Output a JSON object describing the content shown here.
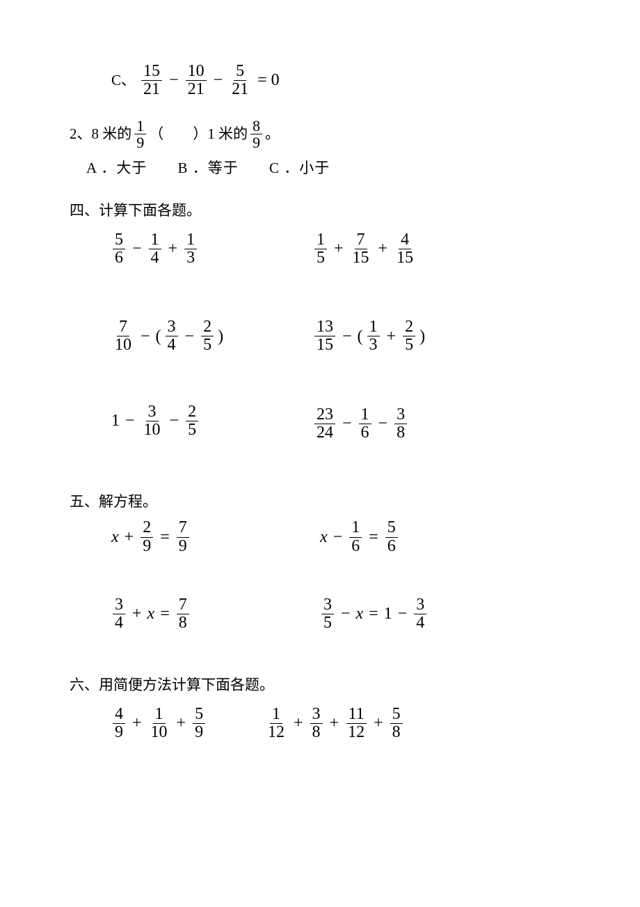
{
  "option_c_item": {
    "label": "C、",
    "f1": {
      "n": "15",
      "d": "21"
    },
    "op1": "−",
    "f2": {
      "n": "10",
      "d": "21"
    },
    "op2": "−",
    "f3": {
      "n": "5",
      "d": "21"
    },
    "eq": "= 0"
  },
  "q2": {
    "prefix": "2、8 米的",
    "frac1": {
      "n": "1",
      "d": "9"
    },
    "mid": "（　　）1 米的",
    "frac2": {
      "n": "8",
      "d": "9"
    },
    "suffix": " 。",
    "options": {
      "a": "A ．大于",
      "b": "B ．等于",
      "c": "C ．小于"
    }
  },
  "sec4": {
    "title": "四、计算下面各题。",
    "rows": [
      {
        "a": {
          "items": [
            {
              "frac": {
                "n": "5",
                "d": "6"
              }
            },
            {
              "op": "−"
            },
            {
              "frac": {
                "n": "1",
                "d": "4"
              }
            },
            {
              "op": "+"
            },
            {
              "frac": {
                "n": "1",
                "d": "3"
              }
            }
          ]
        },
        "b": {
          "items": [
            {
              "frac": {
                "n": "1",
                "d": "5"
              }
            },
            {
              "op": "+"
            },
            {
              "frac": {
                "n": "7",
                "d": "15"
              }
            },
            {
              "op": "+"
            },
            {
              "frac": {
                "n": "4",
                "d": "15"
              }
            }
          ]
        }
      },
      {
        "a": {
          "items": [
            {
              "frac": {
                "n": "7",
                "d": "10"
              }
            },
            {
              "op": "−"
            },
            {
              "txt": "("
            },
            {
              "frac": {
                "n": "3",
                "d": "4"
              }
            },
            {
              "op": "−"
            },
            {
              "frac": {
                "n": "2",
                "d": "5"
              }
            },
            {
              "txt": ")"
            }
          ]
        },
        "b": {
          "items": [
            {
              "frac": {
                "n": "13",
                "d": "15"
              }
            },
            {
              "op": "−"
            },
            {
              "txt": "("
            },
            {
              "frac": {
                "n": "1",
                "d": "3"
              }
            },
            {
              "op": "+"
            },
            {
              "frac": {
                "n": "2",
                "d": "5"
              }
            },
            {
              "txt": ")"
            }
          ]
        }
      },
      {
        "a": {
          "items": [
            {
              "txt": "1"
            },
            {
              "op": "−"
            },
            {
              "frac": {
                "n": "3",
                "d": "10"
              }
            },
            {
              "op": "−"
            },
            {
              "frac": {
                "n": "2",
                "d": "5"
              }
            }
          ]
        },
        "b": {
          "items": [
            {
              "frac": {
                "n": "23",
                "d": "24"
              }
            },
            {
              "op": "−"
            },
            {
              "frac": {
                "n": "1",
                "d": "6"
              }
            },
            {
              "op": "−"
            },
            {
              "frac": {
                "n": "3",
                "d": "8"
              }
            }
          ]
        }
      }
    ]
  },
  "sec5": {
    "title": "五、解方程。",
    "rows": [
      {
        "a": {
          "items": [
            {
              "var": "x"
            },
            {
              "op": "+"
            },
            {
              "frac": {
                "n": "2",
                "d": "9"
              }
            },
            {
              "op": "="
            },
            {
              "frac": {
                "n": "7",
                "d": "9"
              }
            }
          ]
        },
        "b": {
          "items": [
            {
              "var": "x"
            },
            {
              "op": "−"
            },
            {
              "frac": {
                "n": "1",
                "d": "6"
              }
            },
            {
              "op": "="
            },
            {
              "frac": {
                "n": "5",
                "d": "6"
              }
            }
          ]
        }
      },
      {
        "a": {
          "items": [
            {
              "frac": {
                "n": "3",
                "d": "4"
              }
            },
            {
              "op": "+"
            },
            {
              "var": "x"
            },
            {
              "op": "="
            },
            {
              "frac": {
                "n": "7",
                "d": "8"
              }
            }
          ]
        },
        "b": {
          "items": [
            {
              "frac": {
                "n": "3",
                "d": "5"
              }
            },
            {
              "op": "−"
            },
            {
              "var": "x"
            },
            {
              "op": "="
            },
            {
              "txt": "1"
            },
            {
              "op": "−"
            },
            {
              "frac": {
                "n": "3",
                "d": "4"
              }
            }
          ]
        }
      }
    ]
  },
  "sec6": {
    "title": "六、用简便方法计算下面各题。",
    "rows": [
      {
        "a": {
          "items": [
            {
              "frac": {
                "n": "4",
                "d": "9"
              }
            },
            {
              "op": "+"
            },
            {
              "frac": {
                "n": "1",
                "d": "10"
              }
            },
            {
              "op": "+"
            },
            {
              "frac": {
                "n": "5",
                "d": "9"
              }
            }
          ]
        },
        "b": {
          "items": [
            {
              "frac": {
                "n": "1",
                "d": "12"
              }
            },
            {
              "op": "+"
            },
            {
              "frac": {
                "n": "3",
                "d": "8"
              }
            },
            {
              "op": "+"
            },
            {
              "frac": {
                "n": "11",
                "d": "12"
              }
            },
            {
              "op": "+"
            },
            {
              "frac": {
                "n": "5",
                "d": "8"
              }
            }
          ]
        }
      }
    ]
  }
}
